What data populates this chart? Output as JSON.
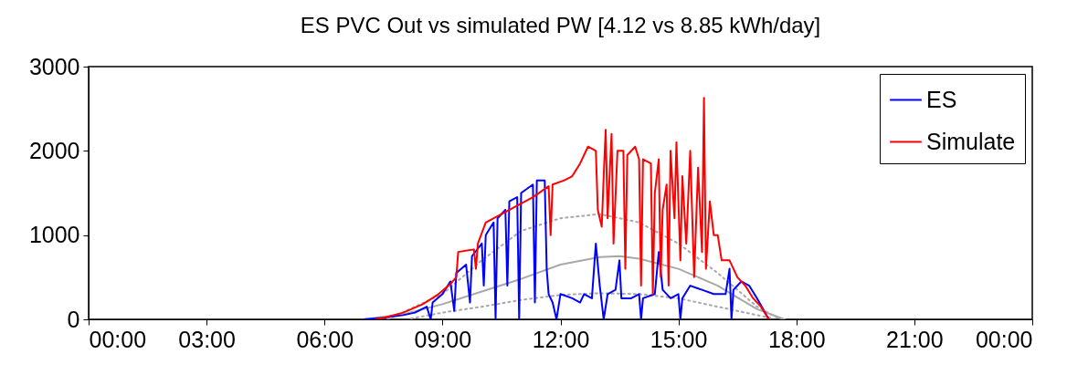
{
  "chart_data": {
    "type": "line",
    "title": "ES PVC Out vs simulated PW [4.12 vs 8.85 kWh/day]",
    "xlim": [
      0,
      24
    ],
    "ylim": [
      0,
      3000
    ],
    "xticks": [
      {
        "value": 0,
        "label": "00:00"
      },
      {
        "value": 3,
        "label": "03:00"
      },
      {
        "value": 6,
        "label": "06:00"
      },
      {
        "value": 9,
        "label": "09:00"
      },
      {
        "value": 12,
        "label": "12:00"
      },
      {
        "value": 15,
        "label": "15:00"
      },
      {
        "value": 18,
        "label": "18:00"
      },
      {
        "value": 21,
        "label": "21:00"
      },
      {
        "value": 24,
        "label": "00:00"
      }
    ],
    "yticks": [
      0,
      1000,
      2000,
      3000
    ],
    "grid": false,
    "legend": "top right",
    "marker": "none",
    "series": [
      {
        "color": "#a8a8a8",
        "line_style": "dotted",
        "x": [
          7.6,
          9,
          10,
          11,
          12,
          13,
          14,
          15,
          16,
          17,
          17.6
        ],
        "values": [
          0,
          300,
          700,
          1050,
          1200,
          1250,
          1150,
          900,
          550,
          150,
          0
        ]
      },
      {
        "color": "#a8a8a8",
        "line_style": "dotted",
        "x": [
          8.2,
          9,
          10,
          11,
          12,
          13,
          14,
          15,
          16,
          17,
          17.4
        ],
        "values": [
          10,
          80,
          150,
          230,
          290,
          310,
          300,
          250,
          150,
          50,
          10
        ]
      },
      {
        "color": "#a8a8a8",
        "line_style": "solid",
        "x": [
          7,
          8,
          9,
          10,
          11,
          12,
          13,
          13.5,
          14,
          15,
          16,
          17,
          17.7
        ],
        "values": [
          0,
          60,
          180,
          330,
          480,
          650,
          740,
          750,
          720,
          600,
          400,
          120,
          0
        ]
      },
      {
        "name": "ES",
        "color": "#0000ff",
        "line_style": "solid",
        "x": [
          7,
          7.5,
          8,
          8.3,
          8.6,
          8.7,
          8.75,
          9,
          9.2,
          9.3,
          9.35,
          9.6,
          9.7,
          9.75,
          10,
          10.05,
          10.1,
          10.3,
          10.35,
          10.4,
          10.6,
          10.65,
          10.7,
          10.9,
          10.95,
          11,
          11.3,
          11.35,
          11.4,
          11.6,
          11.65,
          11.7,
          11.8,
          11.9,
          12,
          12.3,
          12.5,
          12.6,
          12.8,
          12.9,
          13,
          13.1,
          13.2,
          13.4,
          13.5,
          13.55,
          13.8,
          14,
          14.05,
          14.1,
          14.4,
          14.5,
          14.6,
          14.8,
          15,
          15.05,
          15.1,
          15.3,
          15.6,
          15.9,
          16.2,
          16.3,
          16.35,
          16.4,
          16.6,
          16.8,
          17,
          17.3
        ],
        "values": [
          0,
          20,
          50,
          80,
          150,
          0,
          200,
          300,
          450,
          100,
          550,
          650,
          200,
          750,
          900,
          400,
          1000,
          1150,
          0,
          1200,
          1300,
          400,
          1400,
          1450,
          0,
          1500,
          1600,
          200,
          1650,
          1650,
          600,
          300,
          200,
          0,
          300,
          250,
          200,
          300,
          250,
          900,
          400,
          0,
          300,
          350,
          700,
          250,
          250,
          300,
          0,
          250,
          300,
          800,
          350,
          250,
          300,
          0,
          250,
          400,
          350,
          300,
          300,
          600,
          0,
          350,
          450,
          400,
          250,
          0
        ]
      },
      {
        "name": "Simulate",
        "color": "#ff0000",
        "line_style": "solid",
        "x": [
          7.3,
          7.6,
          8,
          8.5,
          8.9,
          9.2,
          9.35,
          9.4,
          9.8,
          9.85,
          9.9,
          10.1,
          10.5,
          10.9,
          11.3,
          11.7,
          11.75,
          11.8,
          12.1,
          12.3,
          12.5,
          12.7,
          12.9,
          12.95,
          13.05,
          13.1,
          13.15,
          13.2,
          13.3,
          13.35,
          13.45,
          13.6,
          13.65,
          13.7,
          13.9,
          14,
          14.05,
          14.1,
          14.3,
          14.35,
          14.4,
          14.5,
          14.55,
          14.6,
          14.7,
          14.75,
          14.8,
          14.9,
          14.95,
          15.05,
          15.1,
          15.2,
          15.3,
          15.4,
          15.5,
          15.6,
          15.65,
          15.7,
          15.8,
          15.9,
          16,
          16.1,
          16.3,
          16.5,
          16.7,
          16.9,
          17.1,
          17.3
        ],
        "values": [
          0,
          30,
          80,
          180,
          300,
          420,
          500,
          800,
          830,
          600,
          900,
          1150,
          1250,
          1350,
          1450,
          1580,
          1000,
          1600,
          1650,
          1700,
          1850,
          2050,
          2000,
          1300,
          1100,
          1700,
          2250,
          1200,
          2200,
          900,
          2000,
          2000,
          600,
          1950,
          2050,
          1900,
          400,
          1900,
          1850,
          300,
          1500,
          1900,
          500,
          1300,
          1600,
          400,
          2000,
          1200,
          2100,
          700,
          1700,
          900,
          2000,
          500,
          1800,
          800,
          2630,
          600,
          1400,
          1000,
          1000,
          700,
          700,
          500,
          400,
          250,
          150,
          0
        ]
      }
    ]
  }
}
